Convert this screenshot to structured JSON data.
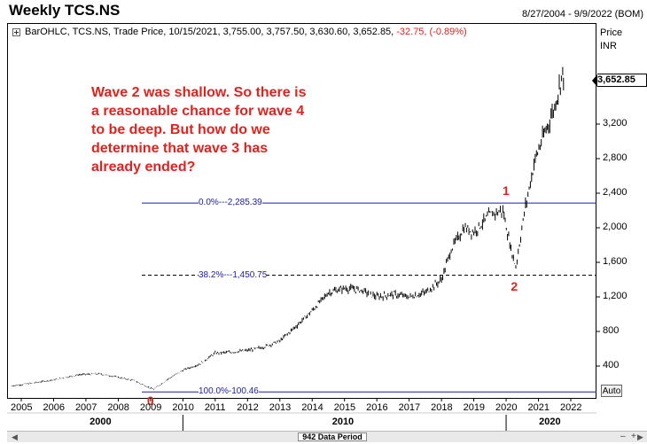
{
  "header": {
    "title": "Weekly TCS.NS",
    "range": "8/27/2004 - 9/9/2022 (BOM)"
  },
  "infobar": {
    "series_name": "BarOHLC, TCS.NS, Trade Price, 10/15/2021, 3,755.00, 3,757.50, 3,630.60, 3,652.85,",
    "change": "-32.75, (-0.89%)"
  },
  "annotation": "Wave 2 was shallow. So there is\na reasonable chance for wave 4\nto be deep. But how do we\ndetermine that wave 3 has\nalready ended?",
  "price_axis": {
    "header": "Price",
    "currency": "INR",
    "last_price": "3,652.85",
    "auto_label": "Auto"
  },
  "fib_levels": [
    {
      "label": "0.0%---2,285.39",
      "value": 2285.39,
      "style": "solid"
    },
    {
      "label": "38.2%---1,450.75",
      "value": 1450.75,
      "style": "dashed"
    },
    {
      "label": "100.0%-100.46",
      "value": 100.46,
      "style": "solid"
    }
  ],
  "wave_labels": [
    {
      "text": "0",
      "year": 2009.0,
      "price": 100
    },
    {
      "text": "1",
      "year": 2020.0,
      "price": 2285
    },
    {
      "text": "2",
      "year": 2020.2,
      "price": 1450
    }
  ],
  "scrollbar": {
    "thumb_label": "942 Data Period"
  },
  "colors": {
    "price_bars": "#000000",
    "fib_line": "#1c1ca8",
    "annotation": "#e0231e",
    "change": "#e0231e"
  },
  "chart_data": {
    "type": "bar",
    "subtype": "OHLC",
    "title": "Weekly TCS.NS",
    "ylabel": "Price (INR)",
    "ylim": [
      0,
      3900
    ],
    "xlim": [
      2005.0,
      2022.7
    ],
    "y_ticks": [
      400,
      800,
      1200,
      1600,
      2000,
      2400,
      2800,
      3200
    ],
    "y_tick_labels": [
      "400",
      "800",
      "1,200",
      "1,600",
      "2,000",
      "2,400",
      "2,800",
      "3,200"
    ],
    "x_ticks": [
      2005,
      2006,
      2007,
      2008,
      2009,
      2010,
      2011,
      2012,
      2013,
      2014,
      2015,
      2016,
      2017,
      2018,
      2019,
      2020,
      2021,
      2022
    ],
    "x_decade_labels": [
      {
        "label": "2000",
        "year": 2007.5
      },
      {
        "label": "2010",
        "year": 2015.0
      },
      {
        "label": "2020",
        "year": 2021.4
      }
    ],
    "grid": false,
    "series": [
      {
        "name": "TCS.NS",
        "points": [
          [
            2004.7,
            170
          ],
          [
            2005.3,
            200
          ],
          [
            2006.0,
            240
          ],
          [
            2006.8,
            300
          ],
          [
            2007.4,
            310
          ],
          [
            2008.0,
            270
          ],
          [
            2008.5,
            230
          ],
          [
            2008.9,
            160
          ],
          [
            2009.1,
            130
          ],
          [
            2009.5,
            240
          ],
          [
            2010.0,
            350
          ],
          [
            2010.5,
            420
          ],
          [
            2011.0,
            550
          ],
          [
            2011.5,
            560
          ],
          [
            2012.0,
            580
          ],
          [
            2012.5,
            620
          ],
          [
            2013.0,
            690
          ],
          [
            2013.5,
            860
          ],
          [
            2014.0,
            1040
          ],
          [
            2014.5,
            1250
          ],
          [
            2015.0,
            1300
          ],
          [
            2015.5,
            1280
          ],
          [
            2016.0,
            1200
          ],
          [
            2016.5,
            1230
          ],
          [
            2017.0,
            1200
          ],
          [
            2017.5,
            1250
          ],
          [
            2018.0,
            1400
          ],
          [
            2018.3,
            1750
          ],
          [
            2018.7,
            2000
          ],
          [
            2019.0,
            1950
          ],
          [
            2019.5,
            2150
          ],
          [
            2019.9,
            2200
          ],
          [
            2020.15,
            1750
          ],
          [
            2020.3,
            1550
          ],
          [
            2020.6,
            2250
          ],
          [
            2020.9,
            2800
          ],
          [
            2021.2,
            3100
          ],
          [
            2021.5,
            3400
          ],
          [
            2021.75,
            3800
          ],
          [
            2021.8,
            3650
          ]
        ]
      }
    ],
    "last": {
      "date": "10/15/2021",
      "open": 3755.0,
      "high": 3757.5,
      "low": 3630.6,
      "close": 3652.85
    }
  }
}
